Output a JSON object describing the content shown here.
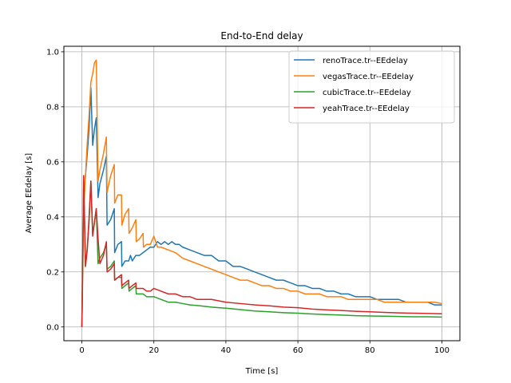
{
  "chart_data": {
    "type": "line",
    "title": "End-to-End delay",
    "xlabel": "Time [s]",
    "ylabel": "Average EEdelay [s]",
    "xlim": [
      -5,
      105
    ],
    "ylim": [
      -0.05,
      1.02
    ],
    "xticks": [
      0,
      20,
      40,
      60,
      80,
      100
    ],
    "yticks": [
      0.0,
      0.2,
      0.4,
      0.6,
      0.8,
      1.0
    ],
    "xtick_labels": [
      "0",
      "20",
      "40",
      "60",
      "80",
      "100"
    ],
    "ytick_labels": [
      "0.0",
      "0.2",
      "0.4",
      "0.6",
      "0.8",
      "1.0"
    ],
    "grid": true,
    "legend_position": "top-right",
    "series": [
      {
        "name": "renoTrace.tr--EEdelay",
        "color": "#1f77b4",
        "x": [
          0,
          0.5,
          1,
          1.5,
          2,
          2.5,
          3,
          3.5,
          4,
          4.5,
          5,
          6,
          6.8,
          7,
          8,
          9,
          9.1,
          10,
          11,
          11.1,
          12,
          13,
          13.5,
          14,
          15,
          16,
          17,
          18,
          19,
          20,
          21,
          22,
          23,
          24,
          25,
          26,
          27,
          28,
          30,
          32,
          34,
          36,
          38,
          40,
          42,
          44,
          46,
          48,
          50,
          52,
          54,
          56,
          58,
          60,
          62,
          64,
          66,
          68,
          70,
          72,
          74,
          76,
          78,
          80,
          82,
          84,
          86,
          88,
          90,
          92,
          94,
          96,
          98,
          100
        ],
        "y": [
          0.0,
          0.45,
          0.55,
          0.63,
          0.72,
          0.87,
          0.66,
          0.72,
          0.76,
          0.47,
          0.52,
          0.57,
          0.62,
          0.37,
          0.39,
          0.43,
          0.27,
          0.3,
          0.31,
          0.22,
          0.24,
          0.24,
          0.26,
          0.24,
          0.26,
          0.26,
          0.27,
          0.28,
          0.29,
          0.29,
          0.31,
          0.3,
          0.31,
          0.3,
          0.31,
          0.3,
          0.3,
          0.29,
          0.28,
          0.27,
          0.26,
          0.26,
          0.24,
          0.24,
          0.22,
          0.22,
          0.21,
          0.2,
          0.19,
          0.18,
          0.17,
          0.17,
          0.16,
          0.15,
          0.15,
          0.14,
          0.14,
          0.13,
          0.13,
          0.12,
          0.12,
          0.11,
          0.11,
          0.11,
          0.1,
          0.1,
          0.1,
          0.1,
          0.09,
          0.09,
          0.09,
          0.09,
          0.08,
          0.08
        ]
      },
      {
        "name": "vegasTrace.tr--EEdelay",
        "color": "#ff7f0e",
        "x": [
          0,
          0.5,
          1,
          1.5,
          2,
          2.5,
          3,
          3.5,
          4,
          4.5,
          5,
          6,
          6.8,
          7,
          8,
          9,
          9.1,
          10,
          11,
          11.1,
          12,
          13,
          13.1,
          14,
          15,
          15.1,
          16,
          17,
          17.1,
          18,
          19,
          20,
          21,
          22,
          24,
          26,
          28,
          30,
          32,
          34,
          36,
          38,
          40,
          42,
          44,
          46,
          48,
          50,
          52,
          54,
          56,
          58,
          60,
          62,
          64,
          66,
          68,
          70,
          72,
          74,
          76,
          78,
          80,
          82,
          84,
          86,
          88,
          90,
          92,
          94,
          96,
          98,
          100
        ],
        "y": [
          0.0,
          0.42,
          0.55,
          0.67,
          0.77,
          0.89,
          0.92,
          0.96,
          0.97,
          0.53,
          0.57,
          0.63,
          0.69,
          0.49,
          0.55,
          0.59,
          0.45,
          0.48,
          0.48,
          0.37,
          0.41,
          0.43,
          0.34,
          0.36,
          0.39,
          0.31,
          0.32,
          0.34,
          0.29,
          0.3,
          0.3,
          0.33,
          0.29,
          0.29,
          0.28,
          0.27,
          0.25,
          0.24,
          0.23,
          0.22,
          0.21,
          0.2,
          0.19,
          0.18,
          0.17,
          0.17,
          0.16,
          0.15,
          0.15,
          0.14,
          0.14,
          0.13,
          0.13,
          0.12,
          0.12,
          0.12,
          0.11,
          0.11,
          0.11,
          0.1,
          0.1,
          0.1,
          0.1,
          0.1,
          0.09,
          0.09,
          0.09,
          0.09,
          0.09,
          0.09,
          0.09,
          0.09,
          0.085
        ]
      },
      {
        "name": "cubicTrace.tr--EEdelay",
        "color": "#2ca02c",
        "x": [
          0,
          0.5,
          1,
          1.5,
          2,
          2.5,
          3,
          3.5,
          4,
          4.5,
          5,
          6,
          6.8,
          7,
          8,
          9,
          9.1,
          10,
          11,
          11.1,
          12,
          13,
          13.1,
          14,
          15,
          15.1,
          16,
          17,
          18,
          19,
          20,
          22,
          24,
          26,
          28,
          30,
          32,
          34,
          36,
          38,
          40,
          44,
          48,
          52,
          56,
          60,
          64,
          68,
          72,
          76,
          80,
          84,
          88,
          92,
          96,
          100
        ],
        "y": [
          0.0,
          0.55,
          0.22,
          0.29,
          0.38,
          0.53,
          0.34,
          0.38,
          0.43,
          0.23,
          0.25,
          0.27,
          0.3,
          0.21,
          0.22,
          0.24,
          0.17,
          0.18,
          0.18,
          0.14,
          0.15,
          0.16,
          0.13,
          0.14,
          0.15,
          0.12,
          0.12,
          0.12,
          0.11,
          0.11,
          0.11,
          0.1,
          0.09,
          0.09,
          0.085,
          0.08,
          0.078,
          0.075,
          0.072,
          0.07,
          0.068,
          0.063,
          0.058,
          0.055,
          0.052,
          0.05,
          0.047,
          0.045,
          0.043,
          0.041,
          0.04,
          0.039,
          0.038,
          0.037,
          0.037,
          0.036
        ]
      },
      {
        "name": "yeahTrace.tr--EEdelay",
        "color": "#d62728",
        "x": [
          0,
          0.5,
          1,
          1.5,
          2,
          2.5,
          3,
          3.5,
          4,
          4.5,
          5,
          6,
          6.8,
          7,
          8,
          9,
          9.1,
          10,
          11,
          11.1,
          12,
          13,
          13.1,
          14,
          15,
          15.1,
          16,
          17,
          18,
          19,
          20,
          22,
          24,
          26,
          28,
          30,
          32,
          34,
          36,
          38,
          40,
          44,
          48,
          52,
          56,
          60,
          64,
          68,
          72,
          76,
          80,
          84,
          88,
          92,
          96,
          100
        ],
        "y": [
          0.0,
          0.55,
          0.22,
          0.28,
          0.4,
          0.53,
          0.33,
          0.38,
          0.43,
          0.32,
          0.23,
          0.26,
          0.31,
          0.2,
          0.21,
          0.23,
          0.17,
          0.18,
          0.19,
          0.15,
          0.16,
          0.17,
          0.14,
          0.15,
          0.16,
          0.14,
          0.14,
          0.14,
          0.13,
          0.13,
          0.14,
          0.13,
          0.12,
          0.12,
          0.11,
          0.11,
          0.1,
          0.1,
          0.1,
          0.095,
          0.09,
          0.085,
          0.08,
          0.077,
          0.072,
          0.07,
          0.065,
          0.062,
          0.06,
          0.057,
          0.055,
          0.053,
          0.051,
          0.05,
          0.049,
          0.048
        ]
      }
    ]
  }
}
